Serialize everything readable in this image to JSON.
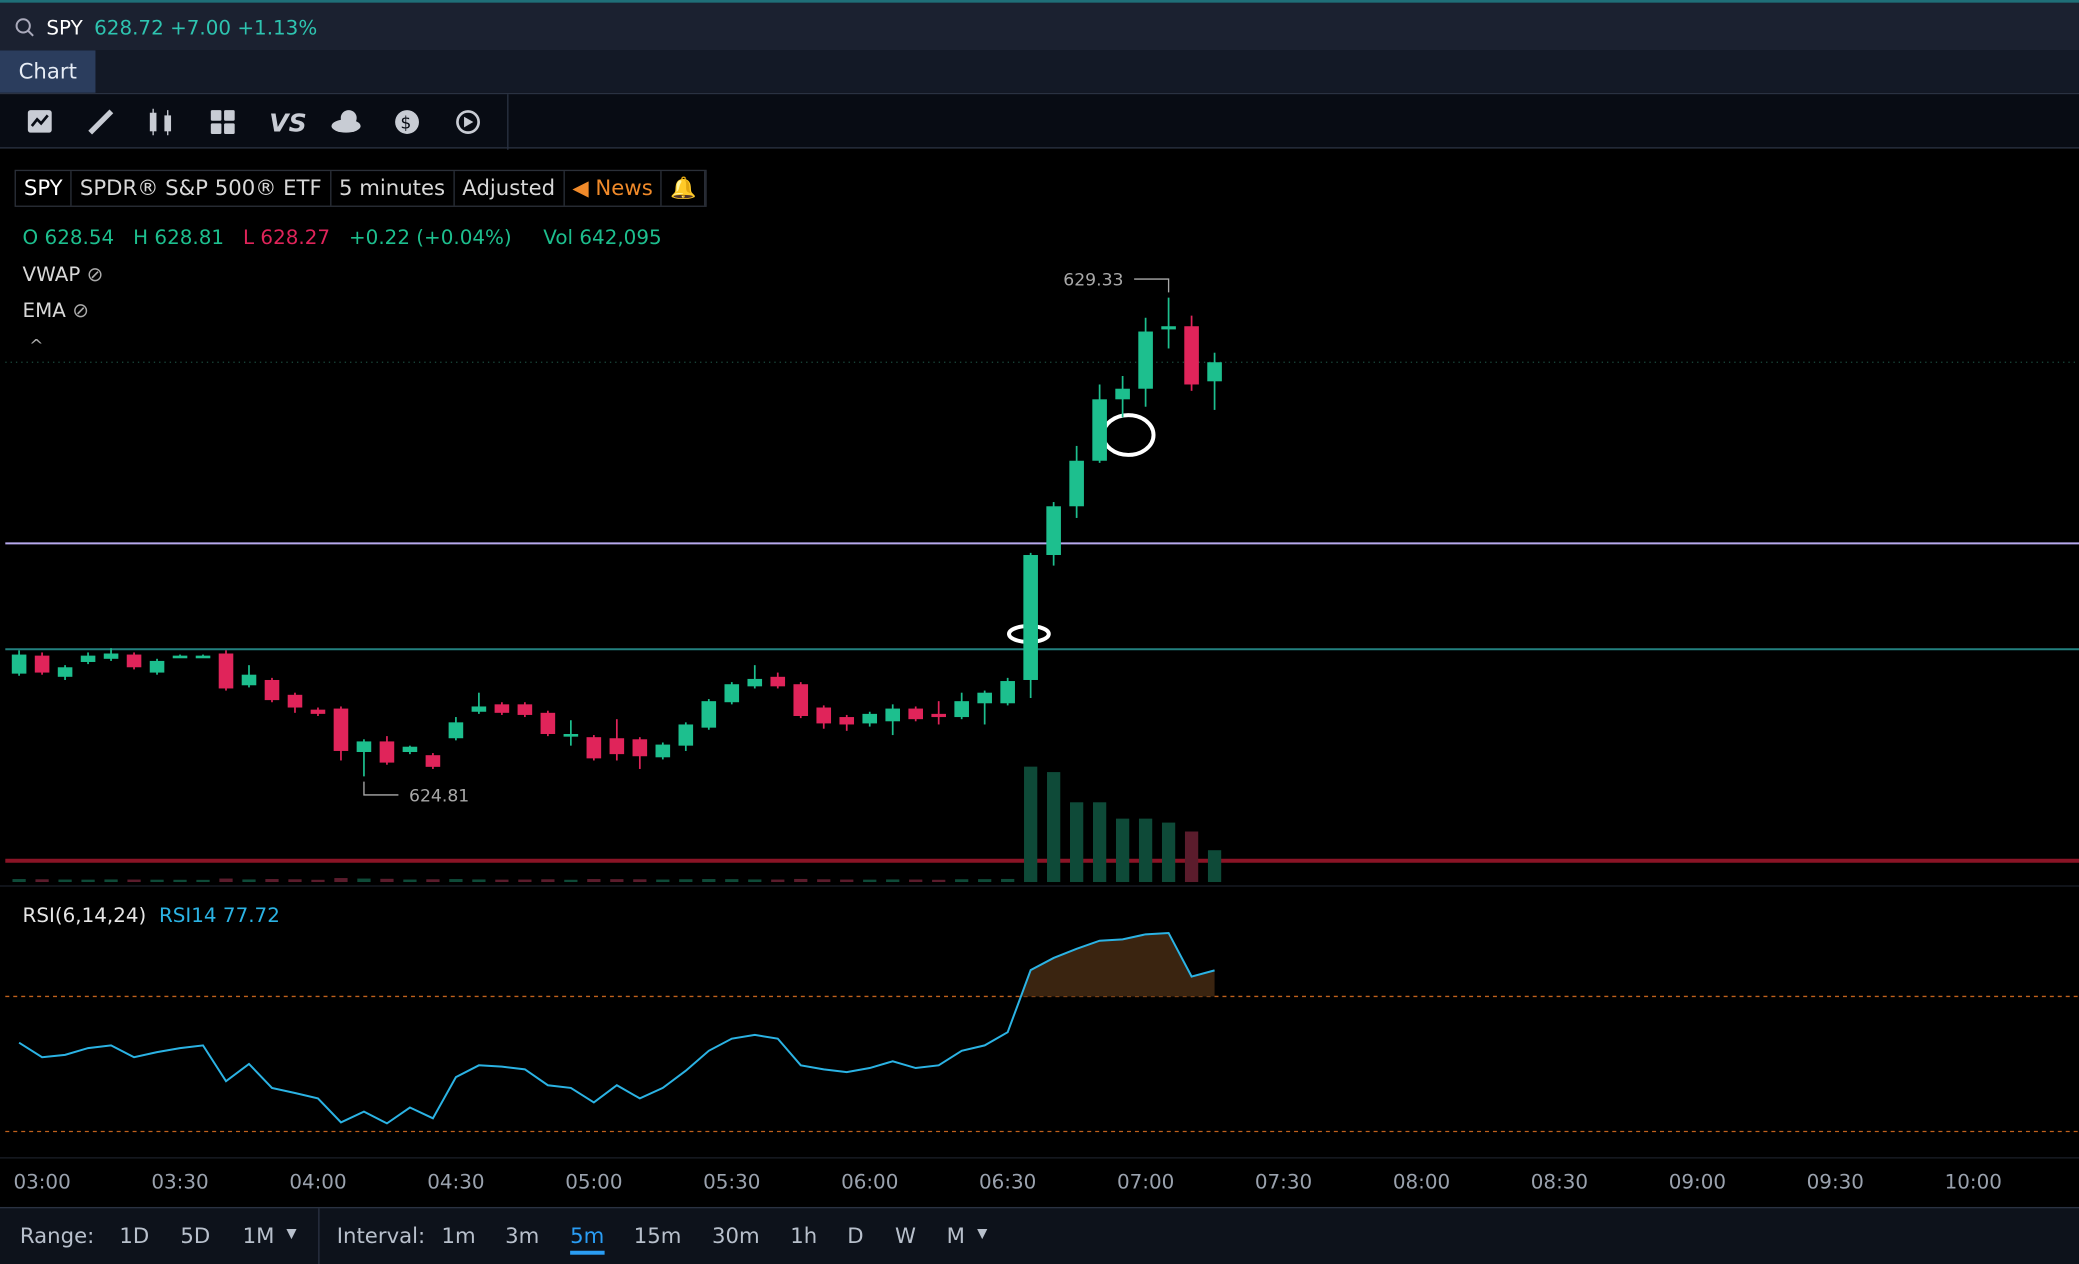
{
  "header": {
    "symbol": "SPY",
    "price": "628.72",
    "change": "+7.00",
    "change_pct": "+1.13%"
  },
  "tabs": [
    "Chart"
  ],
  "legend": {
    "symbol": "SPY",
    "name": "SPDR® S&P 500® ETF",
    "interval": "5 minutes",
    "adjustment": "Adjusted",
    "news": "News"
  },
  "ohlc": {
    "o_label": "O",
    "h_label": "H",
    "l_label": "L",
    "change": "+0.22 (+0.04%)",
    "vol_label": "Vol",
    "vol": "642,095"
  },
  "studies": [
    "VWAP",
    "EMA"
  ],
  "chart_data": {
    "type": "candlestick",
    "x": [
      "02:55",
      "03:00",
      "03:05",
      "03:10",
      "03:15",
      "03:20",
      "03:25",
      "03:30",
      "03:35",
      "03:40",
      "03:45",
      "03:50",
      "03:55",
      "04:00",
      "04:05",
      "04:10",
      "04:15",
      "04:20",
      "04:25",
      "04:30",
      "04:35",
      "04:40",
      "04:45",
      "04:50",
      "04:55",
      "05:00",
      "05:05",
      "05:10",
      "05:15",
      "05:20",
      "05:25",
      "05:30",
      "05:35",
      "05:40",
      "05:45",
      "05:50",
      "05:55",
      "06:00",
      "06:05",
      "06:10",
      "06:15",
      "06:20",
      "06:25",
      "06:30",
      "06:35",
      "06:40",
      "06:45",
      "06:50",
      "06:55",
      "07:00",
      "07:05",
      "07:10",
      "07:15"
    ],
    "candles": {
      "open": [
        625.78,
        625.95,
        625.75,
        625.89,
        625.92,
        625.96,
        625.79,
        625.93,
        625.93,
        625.97,
        625.67,
        625.72,
        625.58,
        625.44,
        625.45,
        625.04,
        625.14,
        625.04,
        625.01,
        625.17,
        625.42,
        625.49,
        625.49,
        625.41,
        625.19,
        625.18,
        625.17,
        625.16,
        624.99,
        625.1,
        625.27,
        625.51,
        625.66,
        625.75,
        625.68,
        625.46,
        625.37,
        625.31,
        625.33,
        625.45,
        625.4,
        625.37,
        625.5,
        625.5,
        625.72,
        626.9,
        627.36,
        627.79,
        628.37,
        628.47,
        629.03,
        629.06,
        628.54
      ],
      "high": [
        626.0,
        625.98,
        625.86,
        625.98,
        626.02,
        625.98,
        625.92,
        625.96,
        625.96,
        626.0,
        625.86,
        625.74,
        625.6,
        625.46,
        625.47,
        625.16,
        625.19,
        625.1,
        625.03,
        625.37,
        625.6,
        625.51,
        625.51,
        625.43,
        625.34,
        625.2,
        625.35,
        625.18,
        625.13,
        625.32,
        625.54,
        625.7,
        625.86,
        625.79,
        625.7,
        625.48,
        625.39,
        625.42,
        625.49,
        625.47,
        625.52,
        625.6,
        625.62,
        625.74,
        626.92,
        627.4,
        627.93,
        628.51,
        628.59,
        629.14,
        629.33,
        629.16,
        628.81
      ],
      "low": [
        625.76,
        625.77,
        625.72,
        625.87,
        625.9,
        625.82,
        625.77,
        625.93,
        625.93,
        625.62,
        625.65,
        625.51,
        625.41,
        625.38,
        624.96,
        624.81,
        624.92,
        625.02,
        624.88,
        625.15,
        625.4,
        625.39,
        625.37,
        625.19,
        625.1,
        624.96,
        624.96,
        624.88,
        624.97,
        625.05,
        625.25,
        625.49,
        625.64,
        625.64,
        625.36,
        625.26,
        625.24,
        625.28,
        625.2,
        625.33,
        625.3,
        625.35,
        625.3,
        625.48,
        625.55,
        626.8,
        627.25,
        627.77,
        628.2,
        628.3,
        628.85,
        628.45,
        628.27
      ],
      "close": [
        625.96,
        625.79,
        625.84,
        625.95,
        625.97,
        625.84,
        625.9,
        625.95,
        625.95,
        625.64,
        625.77,
        625.53,
        625.46,
        625.4,
        625.05,
        625.14,
        624.94,
        625.09,
        624.9,
        625.32,
        625.47,
        625.41,
        625.39,
        625.21,
        625.21,
        624.98,
        625.02,
        625.0,
        625.11,
        625.3,
        625.52,
        625.68,
        625.73,
        625.66,
        625.38,
        625.31,
        625.3,
        625.4,
        625.45,
        625.35,
        625.37,
        625.52,
        625.6,
        625.71,
        626.9,
        627.36,
        627.79,
        628.37,
        628.47,
        629.01,
        629.06,
        628.51,
        628.72
      ]
    },
    "ylim": [
      623.8,
      630.7
    ],
    "xlim": [
      "02:52",
      "10:23"
    ],
    "xticks": [
      "03:00",
      "03:30",
      "04:00",
      "04:30",
      "05:00",
      "05:30",
      "06:00",
      "06:30",
      "07:00",
      "07:30",
      "08:00",
      "08:30",
      "09:00",
      "09:30",
      "10:00"
    ],
    "levels": [
      627.01,
      626.01
    ],
    "level_colors": [
      "#b7a9ee",
      "#23807f"
    ],
    "colors": {
      "up": "#1dbf8e",
      "down": "#e0245a",
      "vol_up": "#0e4a38",
      "vol_down": "#5b1c2c"
    },
    "volume": {
      "values": [
        60000,
        55000,
        50000,
        48000,
        52000,
        50000,
        47000,
        45000,
        44000,
        70000,
        52000,
        60000,
        55000,
        45000,
        80000,
        70000,
        65000,
        50000,
        55000,
        60000,
        52000,
        48000,
        50000,
        55000,
        45000,
        60000,
        58000,
        55000,
        50000,
        56000,
        60000,
        58000,
        52000,
        50000,
        62000,
        55000,
        50000,
        48000,
        52000,
        50000,
        45000,
        56000,
        58000,
        62000,
        2330000,
        2220000,
        1610000,
        1610000,
        1280000,
        1280000,
        1200000,
        1020000,
        642095
      ],
      "lim": [
        0,
        3000000
      ]
    },
    "rsi": {
      "label": "RSI(6,14,24)",
      "name": "RSI14",
      "color": "#2bb3e4",
      "ylim": [
        21,
        98
      ],
      "levels": [
        30,
        70
      ],
      "values": [
        56.3,
        52.0,
        52.7,
        54.7,
        55.5,
        52.0,
        53.5,
        54.7,
        55.5,
        44.9,
        50.0,
        42.9,
        41.4,
        39.8,
        32.7,
        35.9,
        32.4,
        37.1,
        33.9,
        46.1,
        49.6,
        49.2,
        48.4,
        43.7,
        42.9,
        38.6,
        43.7,
        39.8,
        42.9,
        48.0,
        53.9,
        57.5,
        58.6,
        57.5,
        49.6,
        48.4,
        47.6,
        48.8,
        50.8,
        48.8,
        49.6,
        53.9,
        55.5,
        59.4,
        77.8,
        81.4,
        84.1,
        86.5,
        86.9,
        88.4,
        88.8,
        75.9,
        77.72
      ]
    }
  },
  "bottom": {
    "range_label": "Range:",
    "ranges": [
      "1D",
      "5D",
      "1M"
    ],
    "interval_label": "Interval:",
    "intervals": [
      "1m",
      "3m",
      "5m",
      "15m",
      "30m",
      "1h",
      "D",
      "W",
      "M"
    ],
    "active_interval": 2
  }
}
